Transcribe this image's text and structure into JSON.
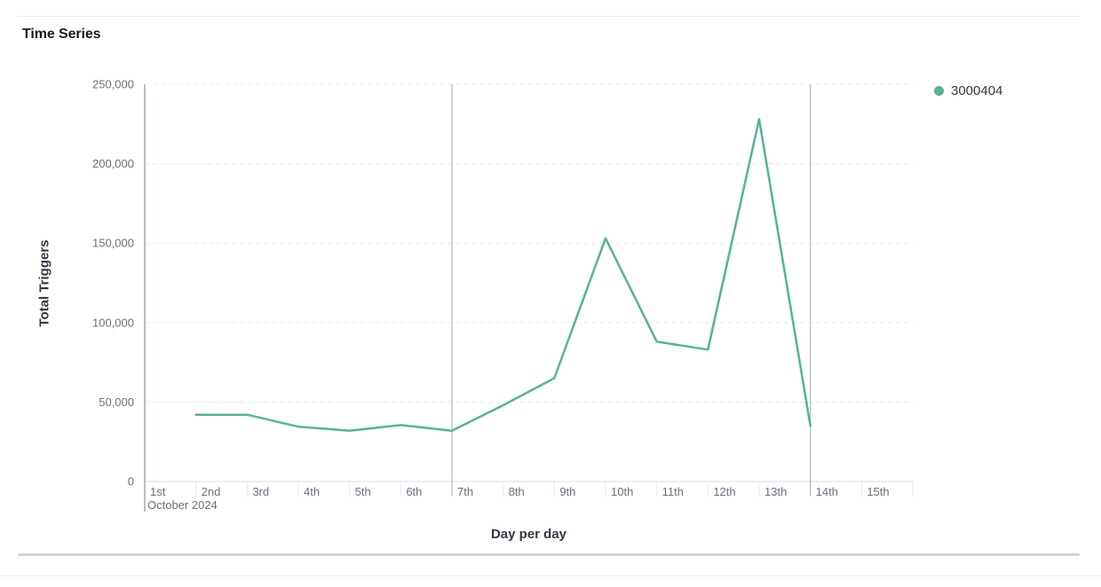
{
  "header": {
    "title": "Time Series"
  },
  "legend": {
    "items": [
      {
        "label": "3000404",
        "color": "#54b399"
      }
    ]
  },
  "chart_data": {
    "type": "line",
    "title": "Time Series",
    "xlabel": "Day per day",
    "ylabel": "Total Triggers",
    "x_axis_secondary_label": "October 2024",
    "x_tick_labels": [
      "1st",
      "2nd",
      "3rd",
      "4th",
      "5th",
      "6th",
      "7th",
      "8th",
      "9th",
      "10th",
      "11th",
      "12th",
      "13th",
      "14th",
      "15th"
    ],
    "y_ticks": [
      {
        "label": "0",
        "value": 0
      },
      {
        "label": "50,000",
        "value": 50000
      },
      {
        "label": "100,000",
        "value": 100000
      },
      {
        "label": "150,000",
        "value": 150000
      },
      {
        "label": "200,000",
        "value": 200000
      },
      {
        "label": "250,000",
        "value": 250000
      }
    ],
    "ylim": [
      0,
      250000
    ],
    "grid": "horizontal-dashed",
    "legend_position": "top-right",
    "series": [
      {
        "name": "3000404",
        "color": "#54b399",
        "points": [
          {
            "day": 2,
            "value": 42000
          },
          {
            "day": 3,
            "value": 42000
          },
          {
            "day": 4,
            "value": 34500
          },
          {
            "day": 5,
            "value": 32000
          },
          {
            "day": 6,
            "value": 35500
          },
          {
            "day": 7,
            "value": 32000
          },
          {
            "day": 8,
            "value": 48000
          },
          {
            "day": 9,
            "value": 65000
          },
          {
            "day": 10,
            "value": 153000
          },
          {
            "day": 11,
            "value": 88000
          },
          {
            "day": 12,
            "value": 83000
          },
          {
            "day": 13,
            "value": 228000
          },
          {
            "day": 14,
            "value": 35000
          }
        ]
      }
    ],
    "annotations": {
      "vertical_line_days": [
        7,
        14
      ]
    }
  }
}
